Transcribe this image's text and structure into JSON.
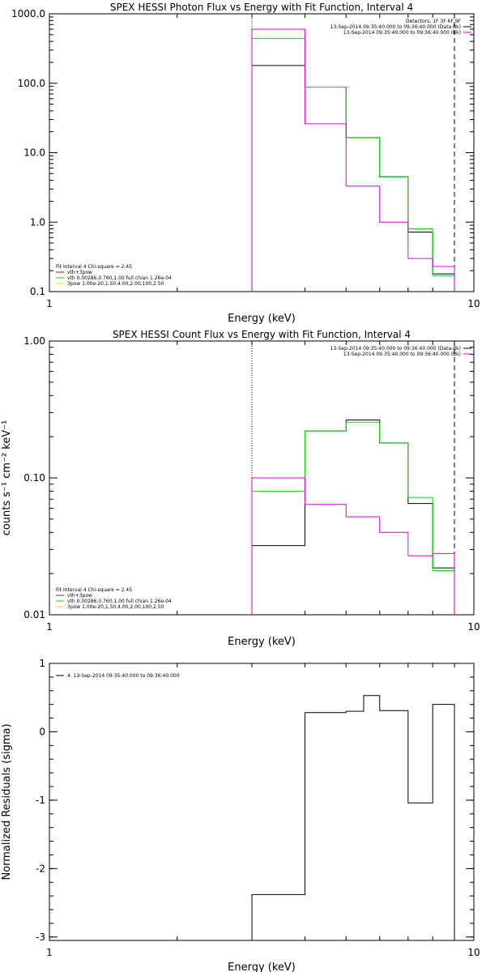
{
  "colors": {
    "data": "#000000",
    "total": "#00dd00",
    "bk": "#dd00dd",
    "comp1": "#dd0000",
    "comp2": "#ffcc00"
  },
  "chart_data": [
    {
      "type": "line",
      "title": "SPEX HESSI Photon Flux vs Energy with Fit Function, Interval 4",
      "xlabel": "Energy (keV)",
      "ylabel": "",
      "xscale": "log",
      "yscale": "log",
      "xlim": [
        1,
        10
      ],
      "ylim": [
        0.1,
        1000
      ],
      "xticks": [
        {
          "v": 1,
          "label": "1"
        },
        {
          "v": 10,
          "label": "10"
        }
      ],
      "yticks": [
        {
          "v": 0.1,
          "label": "0.1"
        },
        {
          "v": 1,
          "label": "1.0"
        },
        {
          "v": 10,
          "label": "10.0"
        },
        {
          "v": 100,
          "label": "100.0"
        },
        {
          "v": 1000,
          "label": "1000.0"
        }
      ],
      "dotted_line_x": 3.0,
      "dashed_line_x": 9.0,
      "bin_edges": [
        3.0,
        4.0,
        5.0,
        6.0,
        7.0,
        8.0,
        9.0
      ],
      "series": [
        {
          "color": "data",
          "values": [
            180,
            88,
            16.5,
            4.5,
            0.72,
            0.18
          ]
        },
        {
          "color": "total",
          "values": [
            440,
            88,
            16.5,
            4.5,
            0.8,
            0.17
          ]
        },
        {
          "color": "bk",
          "values": [
            600,
            26,
            3.3,
            1.0,
            0.3,
            0.23
          ]
        }
      ],
      "info_lines": [
        "Detectors: 1F 3F 6F 9F",
        "13-Sep-2014 09:35:40.000 to 09:36:40.000 (Data-Bk)",
        "13-Sep-2014 09:35:40.000 to 09:36:40.000 (Bk)"
      ],
      "info_colors": [
        "",
        "data",
        "bk"
      ],
      "legend": [
        {
          "text": "Fit Interval  4   Chi-square = 2.45",
          "color": ""
        },
        {
          "text": "vth+3pow",
          "color": "comp1"
        },
        {
          "text": "vth 0.00286,0.760,1.00  full chian 1.26e-04",
          "color": "total"
        },
        {
          "text": "3pow 1.00e-20,1.50,4.00,2.00,100,2.50",
          "color": "comp2"
        }
      ]
    },
    {
      "type": "line",
      "title": "SPEX HESSI Count Flux vs Energy with Fit Function, Interval 4",
      "xlabel": "Energy (keV)",
      "ylabel": "counts s⁻¹ cm⁻² keV⁻¹",
      "xscale": "log",
      "yscale": "log",
      "xlim": [
        1,
        10
      ],
      "ylim": [
        0.01,
        1.0
      ],
      "xticks": [
        {
          "v": 1,
          "label": "1"
        },
        {
          "v": 10,
          "label": "10"
        }
      ],
      "yticks": [
        {
          "v": 0.01,
          "label": "0.01"
        },
        {
          "v": 0.1,
          "label": "0.10"
        },
        {
          "v": 1.0,
          "label": "1.00"
        }
      ],
      "dotted_line_x": 3.0,
      "dashed_line_x": 9.0,
      "bin_edges": [
        3.0,
        4.0,
        5.0,
        6.0,
        7.0,
        8.0,
        9.0
      ],
      "series": [
        {
          "color": "data",
          "values": [
            0.032,
            0.22,
            0.265,
            0.18,
            0.065,
            0.022
          ]
        },
        {
          "color": "total",
          "values": [
            0.08,
            0.22,
            0.255,
            0.18,
            0.072,
            0.021
          ]
        },
        {
          "color": "bk",
          "values": [
            0.1,
            0.064,
            0.052,
            0.04,
            0.027,
            0.028
          ]
        }
      ],
      "info_lines": [
        "13-Sep-2014 09:35:40.000 to 09:36:40.000 (Data-Bk)",
        "13-Sep-2014 09:35:40.000 to 09:36:40.000 (Bk)"
      ],
      "info_colors": [
        "data",
        "bk"
      ],
      "legend": [
        {
          "text": "Fit Interval  4   Chi-square = 2.45",
          "color": ""
        },
        {
          "text": "vth+3pow",
          "color": "comp1"
        },
        {
          "text": "vth 0.00286,0.760,1.00  full chian 1.26e-04",
          "color": "total"
        },
        {
          "text": "3pow 1.00e-20,1.50,4.00,2.00,100,2.50",
          "color": "comp2"
        }
      ]
    },
    {
      "type": "line",
      "title": "",
      "xlabel": "Energy (keV)",
      "ylabel": "Normalized Residuals (sigma)",
      "xscale": "log",
      "yscale": "linear",
      "xlim": [
        1,
        10
      ],
      "ylim": [
        -3.05,
        1.0
      ],
      "xticks": [
        {
          "v": 1,
          "label": "1"
        },
        {
          "v": 10,
          "label": "10"
        }
      ],
      "yticks": [
        {
          "v": -3,
          "label": "-3"
        },
        {
          "v": -2,
          "label": "-2"
        },
        {
          "v": -1,
          "label": "-1"
        },
        {
          "v": 0,
          "label": "0"
        },
        {
          "v": 1,
          "label": "1"
        }
      ],
      "bin_edges": [
        3.0,
        4.0,
        5.0,
        6.0,
        7.0,
        8.0,
        9.0
      ],
      "series": [
        {
          "color": "data",
          "values": [
            -2.38,
            0.28,
            0.3,
            0.53,
            0.31,
            -1.04,
            0.4
          ]
        }
      ],
      "residual_edges": [
        3.0,
        4.0,
        5.0,
        5.5,
        6.0,
        7.0,
        8.0,
        9.0
      ],
      "legend": [
        {
          "text": "4. 13-Sep-2014 09:35:40.000 to 09:36:40.000",
          "color": "data"
        }
      ]
    }
  ]
}
